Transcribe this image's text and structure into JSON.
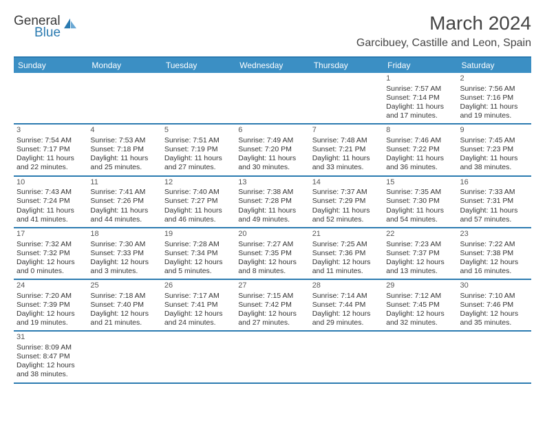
{
  "brand": {
    "text1": "General",
    "text2": "Blue"
  },
  "title": "March 2024",
  "location": "Garcibuey, Castille and Leon, Spain",
  "weekdays": [
    "Sunday",
    "Monday",
    "Tuesday",
    "Wednesday",
    "Thursday",
    "Friday",
    "Saturday"
  ],
  "header_bg": "#3b8fc4",
  "accent": "#2a7ab0",
  "days": [
    null,
    null,
    null,
    null,
    null,
    {
      "n": "1",
      "sr": "7:57 AM",
      "ss": "7:14 PM",
      "dl": "11 hours and 17 minutes."
    },
    {
      "n": "2",
      "sr": "7:56 AM",
      "ss": "7:16 PM",
      "dl": "11 hours and 19 minutes."
    },
    {
      "n": "3",
      "sr": "7:54 AM",
      "ss": "7:17 PM",
      "dl": "11 hours and 22 minutes."
    },
    {
      "n": "4",
      "sr": "7:53 AM",
      "ss": "7:18 PM",
      "dl": "11 hours and 25 minutes."
    },
    {
      "n": "5",
      "sr": "7:51 AM",
      "ss": "7:19 PM",
      "dl": "11 hours and 27 minutes."
    },
    {
      "n": "6",
      "sr": "7:49 AM",
      "ss": "7:20 PM",
      "dl": "11 hours and 30 minutes."
    },
    {
      "n": "7",
      "sr": "7:48 AM",
      "ss": "7:21 PM",
      "dl": "11 hours and 33 minutes."
    },
    {
      "n": "8",
      "sr": "7:46 AM",
      "ss": "7:22 PM",
      "dl": "11 hours and 36 minutes."
    },
    {
      "n": "9",
      "sr": "7:45 AM",
      "ss": "7:23 PM",
      "dl": "11 hours and 38 minutes."
    },
    {
      "n": "10",
      "sr": "7:43 AM",
      "ss": "7:24 PM",
      "dl": "11 hours and 41 minutes."
    },
    {
      "n": "11",
      "sr": "7:41 AM",
      "ss": "7:26 PM",
      "dl": "11 hours and 44 minutes."
    },
    {
      "n": "12",
      "sr": "7:40 AM",
      "ss": "7:27 PM",
      "dl": "11 hours and 46 minutes."
    },
    {
      "n": "13",
      "sr": "7:38 AM",
      "ss": "7:28 PM",
      "dl": "11 hours and 49 minutes."
    },
    {
      "n": "14",
      "sr": "7:37 AM",
      "ss": "7:29 PM",
      "dl": "11 hours and 52 minutes."
    },
    {
      "n": "15",
      "sr": "7:35 AM",
      "ss": "7:30 PM",
      "dl": "11 hours and 54 minutes."
    },
    {
      "n": "16",
      "sr": "7:33 AM",
      "ss": "7:31 PM",
      "dl": "11 hours and 57 minutes."
    },
    {
      "n": "17",
      "sr": "7:32 AM",
      "ss": "7:32 PM",
      "dl": "12 hours and 0 minutes."
    },
    {
      "n": "18",
      "sr": "7:30 AM",
      "ss": "7:33 PM",
      "dl": "12 hours and 3 minutes."
    },
    {
      "n": "19",
      "sr": "7:28 AM",
      "ss": "7:34 PM",
      "dl": "12 hours and 5 minutes."
    },
    {
      "n": "20",
      "sr": "7:27 AM",
      "ss": "7:35 PM",
      "dl": "12 hours and 8 minutes."
    },
    {
      "n": "21",
      "sr": "7:25 AM",
      "ss": "7:36 PM",
      "dl": "12 hours and 11 minutes."
    },
    {
      "n": "22",
      "sr": "7:23 AM",
      "ss": "7:37 PM",
      "dl": "12 hours and 13 minutes."
    },
    {
      "n": "23",
      "sr": "7:22 AM",
      "ss": "7:38 PM",
      "dl": "12 hours and 16 minutes."
    },
    {
      "n": "24",
      "sr": "7:20 AM",
      "ss": "7:39 PM",
      "dl": "12 hours and 19 minutes."
    },
    {
      "n": "25",
      "sr": "7:18 AM",
      "ss": "7:40 PM",
      "dl": "12 hours and 21 minutes."
    },
    {
      "n": "26",
      "sr": "7:17 AM",
      "ss": "7:41 PM",
      "dl": "12 hours and 24 minutes."
    },
    {
      "n": "27",
      "sr": "7:15 AM",
      "ss": "7:42 PM",
      "dl": "12 hours and 27 minutes."
    },
    {
      "n": "28",
      "sr": "7:14 AM",
      "ss": "7:44 PM",
      "dl": "12 hours and 29 minutes."
    },
    {
      "n": "29",
      "sr": "7:12 AM",
      "ss": "7:45 PM",
      "dl": "12 hours and 32 minutes."
    },
    {
      "n": "30",
      "sr": "7:10 AM",
      "ss": "7:46 PM",
      "dl": "12 hours and 35 minutes."
    },
    {
      "n": "31",
      "sr": "8:09 AM",
      "ss": "8:47 PM",
      "dl": "12 hours and 38 minutes."
    },
    null,
    null,
    null,
    null,
    null,
    null
  ],
  "labels": {
    "sunrise": "Sunrise:",
    "sunset": "Sunset:",
    "daylight": "Daylight:"
  }
}
